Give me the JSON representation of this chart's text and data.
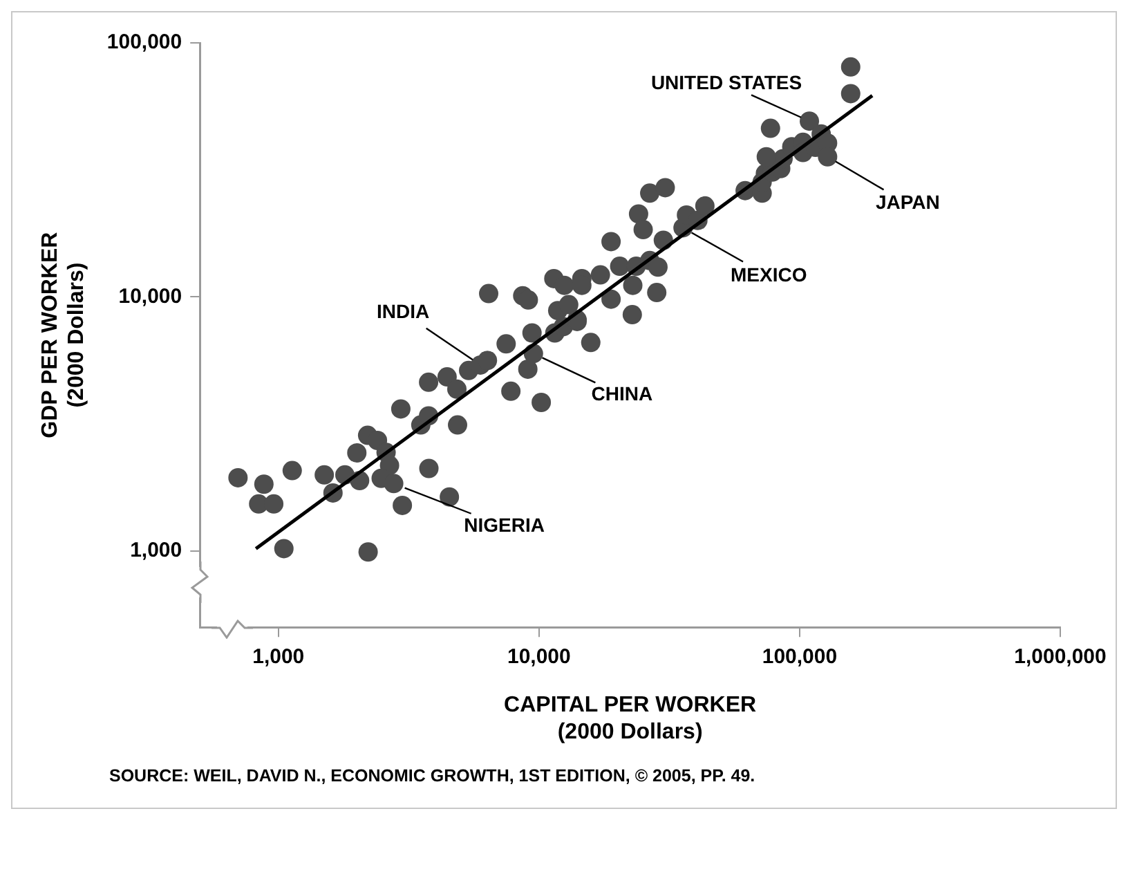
{
  "chart_data": {
    "type": "scatter",
    "xlabel": "CAPITAL PER WORKER\n(2000 Dollars)",
    "ylabel": "GDP PER WORKER\n(2000 Dollars)",
    "log": "xy",
    "marker": "circle",
    "legend": false,
    "xlim": [
      500,
      1000000
    ],
    "ylim": [
      500,
      100000
    ],
    "xticks": [
      {
        "value": 1000,
        "label": "1,000"
      },
      {
        "value": 10000,
        "label": "10,000"
      },
      {
        "value": 100000,
        "label": "100,000"
      },
      {
        "value": 1000000,
        "label": "1,000,000"
      }
    ],
    "yticks": [
      {
        "value": 1000,
        "label": "1,000"
      },
      {
        "value": 10000,
        "label": "10,000"
      },
      {
        "value": 100000,
        "label": "100,000"
      }
    ],
    "series": [
      {
        "color": "#4d4d4d",
        "x": [
          700,
          880,
          840,
          960,
          1130,
          1500,
          1620,
          1800,
          2000,
          2050,
          2200,
          2400,
          2590,
          2670,
          2480,
          2770,
          2990,
          2950,
          3520,
          3770,
          3770,
          4440,
          4840,
          4870,
          3780,
          4530,
          5370,
          5960,
          6340,
          7480,
          9400,
          9520,
          9060,
          7800,
          10200,
          11500,
          12400,
          14000,
          15800,
          1050,
          2210,
          6410,
          8660,
          9100,
          11400,
          12500,
          14600,
          14600,
          17200,
          20400,
          23600,
          22900,
          18900,
          22800,
          11800,
          13000,
          14000,
          18900,
          24100,
          25100,
          26600,
          28600,
          28300,
          30000,
          26600,
          30500,
          35700,
          36800,
          40700,
          43300,
          61800,
          71800,
          71800,
          73900,
          78600,
          84600,
          86400,
          74500,
          77300,
          93300,
          103000,
          103000,
          109000,
          115000,
          121000,
          128000,
          128000,
          157000,
          157000
        ],
        "values": [
          1940,
          1830,
          1530,
          1530,
          2070,
          1990,
          1690,
          1990,
          2430,
          1890,
          2850,
          2720,
          2440,
          2170,
          1930,
          1840,
          1510,
          3620,
          3130,
          3400,
          4610,
          4840,
          4330,
          3130,
          2110,
          1630,
          5130,
          5390,
          5620,
          6530,
          7210,
          5980,
          5190,
          4250,
          3840,
          7210,
          7630,
          8000,
          6610,
          1020,
          990,
          10300,
          10100,
          9720,
          11800,
          11100,
          11800,
          11100,
          12200,
          13200,
          13200,
          11100,
          9790,
          8510,
          8830,
          9320,
          8130,
          16500,
          21200,
          18400,
          13900,
          13100,
          10400,
          16700,
          25600,
          26900,
          18700,
          21000,
          20000,
          22800,
          26200,
          25600,
          28300,
          30600,
          31000,
          32000,
          35000,
          35600,
          46100,
          39000,
          40600,
          37000,
          49200,
          38800,
          43800,
          40300,
          35600,
          80400,
          63100
        ]
      },
      {
        "type": "line",
        "marker": "none",
        "color": "#000000",
        "x": [
          820,
          190000
        ],
        "values": [
          1020,
          62000
        ]
      }
    ],
    "annotations": [
      {
        "text": "UNITED STATES",
        "x": 109000,
        "y": 49200
      },
      {
        "text": "JAPAN",
        "x": 128000,
        "y": 35600
      },
      {
        "text": "MEXICO",
        "x": 35700,
        "y": 18700
      },
      {
        "text": "INDIA",
        "x": 5960,
        "y": 5390
      },
      {
        "text": "CHINA",
        "x": 9520,
        "y": 5980
      },
      {
        "text": "NIGERIA",
        "x": 2770,
        "y": 1840
      },
      "SOURCE: WEIL, DAVID N., ECONOMIC GROWTH, 1ST EDITION, © 2005, PP. 49."
    ]
  }
}
